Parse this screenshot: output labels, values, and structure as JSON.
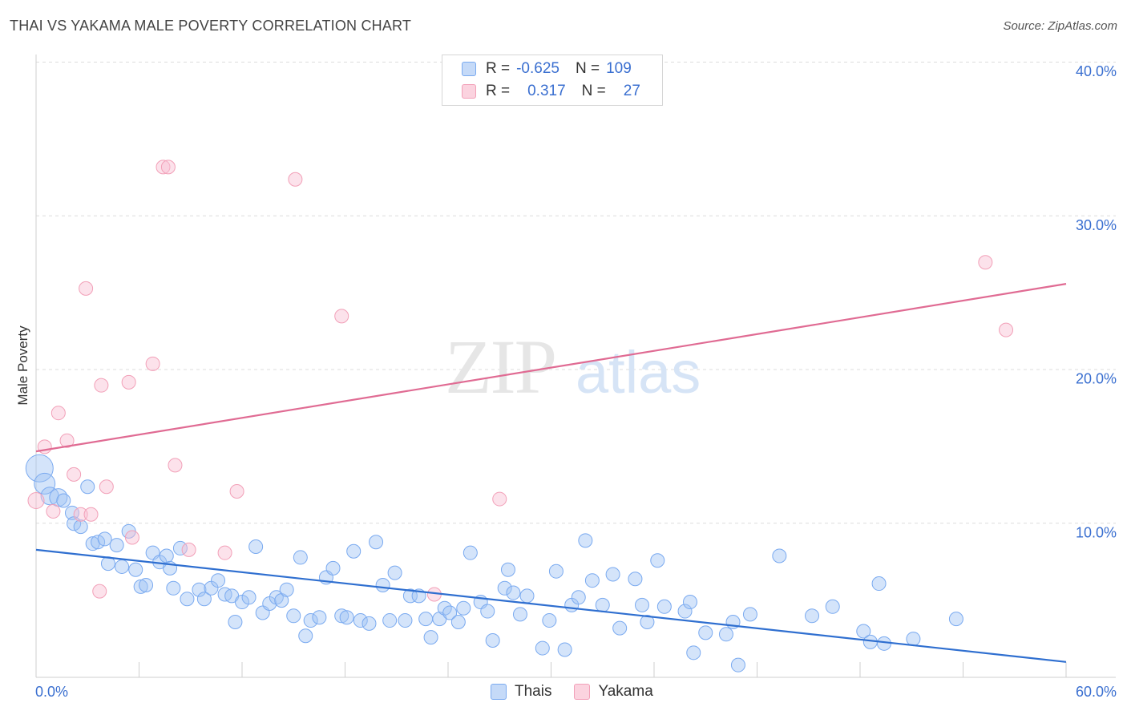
{
  "header": {
    "title": "THAI VS YAKAMA MALE POVERTY CORRELATION CHART",
    "source": "Source: ZipAtlas.com"
  },
  "watermark": {
    "zip": "ZIP",
    "atlas": "atlas"
  },
  "legend": {
    "rows": [
      {
        "r_label": "R =",
        "r_value": "-0.625",
        "n_label": "N =",
        "n_value": "109",
        "color": "#7aaaf0"
      },
      {
        "r_label": "R =",
        "r_value": "0.317",
        "n_label": "N =",
        "n_value": "27",
        "color": "#f2a0b8"
      }
    ]
  },
  "bottom_legend": [
    {
      "label": "Thais",
      "color": "#7aaaf0"
    },
    {
      "label": "Yakama",
      "color": "#f2a0b8"
    }
  ],
  "chart_data": {
    "type": "scatter",
    "title": "THAI VS YAKAMA MALE POVERTY CORRELATION CHART",
    "xlabel": "",
    "ylabel": "Male Poverty",
    "xlim": [
      0,
      60
    ],
    "ylim": [
      0,
      40
    ],
    "x_tick_labels": [
      "0.0%",
      "60.0%"
    ],
    "y_tick_labels": [
      "10.0%",
      "20.0%",
      "30.0%",
      "40.0%"
    ],
    "y_ticks": [
      10,
      20,
      30,
      40
    ],
    "grid": true,
    "series": [
      {
        "name": "Thais",
        "color": "#7aaaf0",
        "trend": {
          "x": [
            0,
            60
          ],
          "y": [
            8.3,
            1.0
          ],
          "color": "#2f6fd0"
        },
        "points": [
          [
            0.2,
            13.6
          ],
          [
            0.5,
            12.6
          ],
          [
            0.8,
            11.8
          ],
          [
            1.3,
            11.7
          ],
          [
            1.6,
            11.5
          ],
          [
            2.1,
            10.7
          ],
          [
            2.2,
            10.0
          ],
          [
            2.6,
            9.8
          ],
          [
            3.0,
            12.4
          ],
          [
            3.3,
            8.7
          ],
          [
            3.6,
            8.8
          ],
          [
            4.0,
            9.0
          ],
          [
            4.2,
            7.4
          ],
          [
            4.7,
            8.6
          ],
          [
            5.0,
            7.2
          ],
          [
            5.4,
            9.5
          ],
          [
            5.8,
            7.0
          ],
          [
            6.1,
            5.9
          ],
          [
            6.4,
            6.0
          ],
          [
            6.8,
            8.1
          ],
          [
            7.2,
            7.5
          ],
          [
            7.6,
            7.9
          ],
          [
            7.8,
            7.1
          ],
          [
            8.0,
            5.8
          ],
          [
            8.4,
            8.4
          ],
          [
            8.8,
            5.1
          ],
          [
            9.5,
            5.7
          ],
          [
            9.8,
            5.1
          ],
          [
            10.2,
            5.8
          ],
          [
            10.6,
            6.3
          ],
          [
            11.0,
            5.4
          ],
          [
            11.4,
            5.3
          ],
          [
            11.6,
            3.6
          ],
          [
            12.0,
            4.9
          ],
          [
            12.4,
            5.2
          ],
          [
            12.8,
            8.5
          ],
          [
            13.2,
            4.2
          ],
          [
            13.6,
            4.8
          ],
          [
            14.0,
            5.2
          ],
          [
            14.3,
            5.0
          ],
          [
            14.6,
            5.7
          ],
          [
            15.0,
            4.0
          ],
          [
            15.4,
            7.8
          ],
          [
            15.7,
            2.7
          ],
          [
            16.0,
            3.7
          ],
          [
            16.5,
            3.9
          ],
          [
            16.9,
            6.5
          ],
          [
            17.3,
            7.1
          ],
          [
            17.8,
            4.0
          ],
          [
            18.1,
            3.9
          ],
          [
            18.5,
            8.2
          ],
          [
            18.9,
            3.7
          ],
          [
            19.4,
            3.5
          ],
          [
            19.8,
            8.8
          ],
          [
            20.2,
            6.0
          ],
          [
            20.6,
            3.7
          ],
          [
            20.9,
            6.8
          ],
          [
            21.5,
            3.7
          ],
          [
            21.8,
            5.3
          ],
          [
            22.3,
            5.3
          ],
          [
            22.7,
            3.8
          ],
          [
            23.0,
            2.6
          ],
          [
            23.5,
            3.8
          ],
          [
            23.8,
            4.5
          ],
          [
            24.1,
            4.2
          ],
          [
            24.6,
            3.6
          ],
          [
            24.9,
            4.5
          ],
          [
            25.3,
            8.1
          ],
          [
            25.9,
            4.9
          ],
          [
            26.3,
            4.3
          ],
          [
            26.6,
            2.4
          ],
          [
            27.3,
            5.8
          ],
          [
            27.5,
            7.0
          ],
          [
            27.8,
            5.5
          ],
          [
            28.2,
            4.1
          ],
          [
            28.6,
            5.3
          ],
          [
            29.5,
            1.9
          ],
          [
            29.9,
            3.7
          ],
          [
            30.3,
            6.9
          ],
          [
            30.8,
            1.8
          ],
          [
            31.2,
            4.7
          ],
          [
            31.6,
            5.2
          ],
          [
            32.0,
            8.9
          ],
          [
            32.4,
            6.3
          ],
          [
            33.0,
            4.7
          ],
          [
            33.6,
            6.7
          ],
          [
            34.0,
            3.2
          ],
          [
            34.9,
            6.4
          ],
          [
            35.3,
            4.7
          ],
          [
            35.6,
            3.6
          ],
          [
            36.2,
            7.6
          ],
          [
            36.6,
            4.6
          ],
          [
            37.8,
            4.3
          ],
          [
            38.1,
            4.9
          ],
          [
            38.3,
            1.6
          ],
          [
            39.0,
            2.9
          ],
          [
            40.2,
            2.8
          ],
          [
            40.6,
            3.6
          ],
          [
            40.9,
            0.8
          ],
          [
            41.6,
            4.1
          ],
          [
            43.3,
            7.9
          ],
          [
            45.2,
            4.0
          ],
          [
            46.4,
            4.6
          ],
          [
            48.2,
            3.0
          ],
          [
            48.6,
            2.3
          ],
          [
            49.1,
            6.1
          ],
          [
            49.4,
            2.2
          ],
          [
            51.1,
            2.5
          ],
          [
            53.6,
            3.8
          ]
        ]
      },
      {
        "name": "Yakama",
        "color": "#f2a0b8",
        "trend": {
          "x": [
            0,
            60
          ],
          "y": [
            14.7,
            25.6
          ],
          "color": "#e06b93"
        },
        "points": [
          [
            0.0,
            11.5
          ],
          [
            0.5,
            15.0
          ],
          [
            1.0,
            10.8
          ],
          [
            1.3,
            17.2
          ],
          [
            1.8,
            15.4
          ],
          [
            2.2,
            13.2
          ],
          [
            2.6,
            10.6
          ],
          [
            2.9,
            25.3
          ],
          [
            3.2,
            10.6
          ],
          [
            3.7,
            5.6
          ],
          [
            3.8,
            19.0
          ],
          [
            4.1,
            12.4
          ],
          [
            5.4,
            19.2
          ],
          [
            5.6,
            9.1
          ],
          [
            6.8,
            20.4
          ],
          [
            7.4,
            33.2
          ],
          [
            7.7,
            33.2
          ],
          [
            8.1,
            13.8
          ],
          [
            8.9,
            8.3
          ],
          [
            11.0,
            8.1
          ],
          [
            11.7,
            12.1
          ],
          [
            15.1,
            32.4
          ],
          [
            17.8,
            23.5
          ],
          [
            23.2,
            5.4
          ],
          [
            27.0,
            11.6
          ],
          [
            55.3,
            27.0
          ],
          [
            56.5,
            22.6
          ]
        ]
      }
    ]
  }
}
